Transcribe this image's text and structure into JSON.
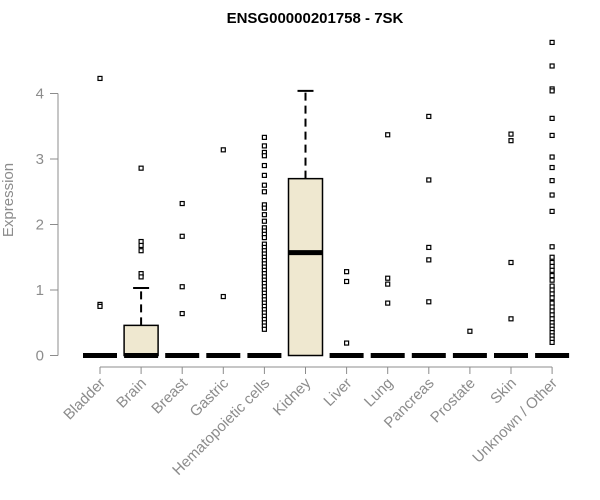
{
  "chart_data": {
    "type": "boxplot",
    "title": "ENSG00000201758 - 7SK",
    "ylabel": "Expression",
    "xlabel": "",
    "ylim": [
      0,
      4.8
    ],
    "yticks": [
      0,
      1,
      2,
      3,
      4
    ],
    "box_color": "#efe8d0",
    "categories": [
      {
        "name": "Bladder",
        "q1": 0,
        "median": 0,
        "q3": 0,
        "whisker_low": 0,
        "whisker_high": 0,
        "outliers": [
          4.23,
          0.78,
          0.75
        ]
      },
      {
        "name": "Brain",
        "q1": 0,
        "median": 0,
        "q3": 0.46,
        "whisker_low": 0,
        "whisker_high": 1.03,
        "outliers": [
          2.86,
          1.74,
          1.68,
          1.6,
          1.25,
          1.2
        ]
      },
      {
        "name": "Breast",
        "q1": 0,
        "median": 0,
        "q3": 0,
        "whisker_low": 0,
        "whisker_high": 0,
        "outliers": [
          2.32,
          1.82,
          1.05,
          0.64
        ]
      },
      {
        "name": "Gastric",
        "q1": 0,
        "median": 0,
        "q3": 0,
        "whisker_low": 0,
        "whisker_high": 0,
        "outliers": [
          3.14,
          0.9
        ]
      },
      {
        "name": "Hematopoietic cells",
        "q1": 0,
        "median": 0,
        "q3": 0,
        "whisker_low": 0,
        "whisker_high": 0,
        "outliers": [
          3.33,
          3.2,
          3.1,
          3.05,
          2.9,
          2.75,
          2.6,
          2.5,
          2.3,
          2.25,
          2.15,
          2.05,
          1.95,
          1.9,
          1.85,
          1.8,
          1.7,
          1.65,
          1.6,
          1.55,
          1.5,
          1.45,
          1.4,
          1.35,
          1.3,
          1.25,
          1.2,
          1.15,
          1.1,
          1.05,
          1.0,
          0.95,
          0.9,
          0.85,
          0.8,
          0.75,
          0.7,
          0.65,
          0.6,
          0.55,
          0.5,
          0.45,
          0.4
        ]
      },
      {
        "name": "Kidney",
        "q1": 0,
        "median": 1.57,
        "q3": 2.7,
        "whisker_low": 0,
        "whisker_high": 4.04,
        "outliers": []
      },
      {
        "name": "Liver",
        "q1": 0,
        "median": 0,
        "q3": 0,
        "whisker_low": 0,
        "whisker_high": 0,
        "outliers": [
          1.28,
          1.13,
          0.19
        ]
      },
      {
        "name": "Lung",
        "q1": 0,
        "median": 0,
        "q3": 0,
        "whisker_low": 0,
        "whisker_high": 0,
        "outliers": [
          3.37,
          1.18,
          1.09,
          0.8
        ]
      },
      {
        "name": "Pancreas",
        "q1": 0,
        "median": 0,
        "q3": 0,
        "whisker_low": 0,
        "whisker_high": 0,
        "outliers": [
          3.65,
          2.68,
          1.65,
          1.46,
          0.82
        ]
      },
      {
        "name": "Prostate",
        "q1": 0,
        "median": 0,
        "q3": 0,
        "whisker_low": 0,
        "whisker_high": 0,
        "outliers": [
          0.37
        ]
      },
      {
        "name": "Skin",
        "q1": 0,
        "median": 0,
        "q3": 0,
        "whisker_low": 0,
        "whisker_high": 0,
        "outliers": [
          3.38,
          3.28,
          1.42,
          0.56
        ]
      },
      {
        "name": "Unknown / Other",
        "q1": 0,
        "median": 0,
        "q3": 0,
        "whisker_low": 0,
        "whisker_high": 0,
        "outliers": [
          4.78,
          4.42,
          4.07,
          4.04,
          3.62,
          3.36,
          3.03,
          2.87,
          2.67,
          2.45,
          2.2,
          1.66,
          1.5,
          1.42,
          1.36,
          1.3,
          1.22,
          1.15,
          1.06,
          1.0,
          0.94,
          0.88,
          0.8,
          0.74,
          0.68,
          0.62,
          0.56,
          0.5,
          0.45,
          0.4,
          0.35,
          0.3,
          0.25,
          0.2
        ]
      }
    ]
  }
}
